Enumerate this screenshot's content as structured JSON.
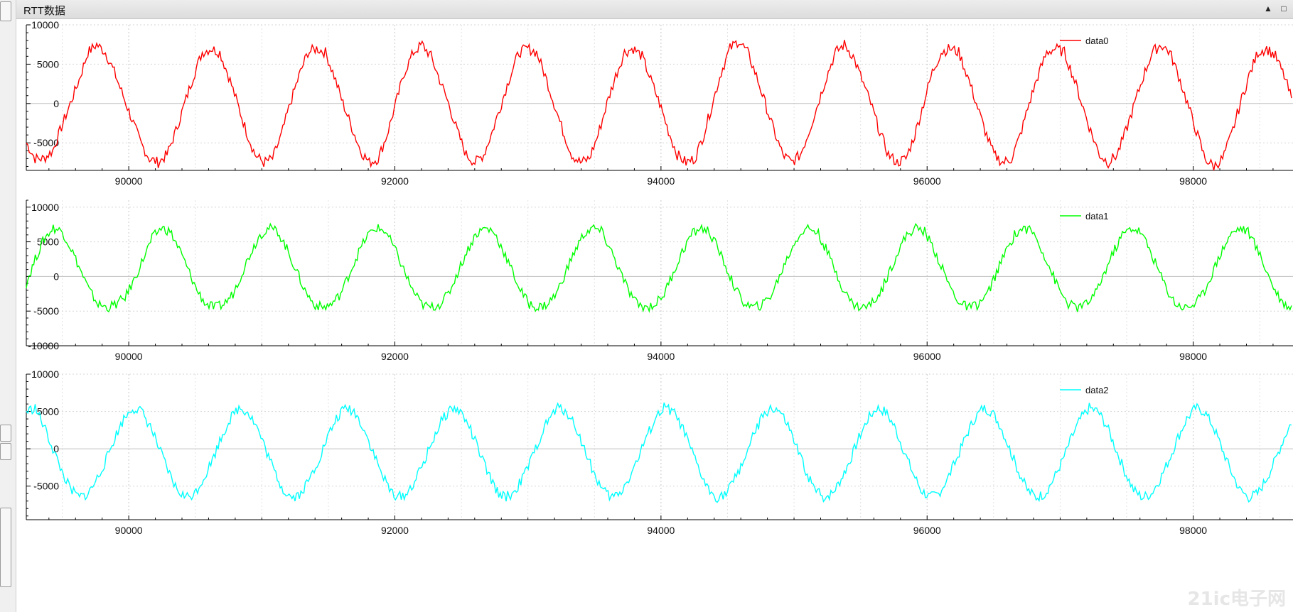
{
  "window": {
    "title": "RTT数据",
    "buttons": [
      "▲",
      "□"
    ]
  },
  "watermark": "21ic电子网",
  "chart_data": [
    {
      "type": "line",
      "x_ticks": [
        90000,
        92000,
        94000,
        96000,
        98000
      ],
      "y_ticks": [
        10000,
        5000,
        0,
        -5000
      ],
      "ylim": [
        -8500,
        10000
      ],
      "xlim": [
        89230,
        98750
      ],
      "grid": true,
      "legend": "top-right",
      "series": [
        {
          "name": "data0",
          "color": "#ff0000",
          "values": [
            -5000,
            -7000,
            -7000,
            -6000,
            -3000,
            0,
            3000,
            6500,
            7500,
            6500,
            4000,
            1000,
            -2000,
            -5000,
            -7000,
            -7500,
            -6500,
            -3500,
            0,
            3500,
            6500,
            7000,
            6500,
            3500,
            0,
            -3500,
            -6500,
            -7500,
            -7000,
            -4000,
            0,
            3500,
            6500,
            7000,
            6500,
            3500,
            0,
            -3000,
            -6000,
            -7500,
            -7000,
            -4000,
            0,
            4000,
            6500,
            7500,
            6000,
            3000,
            0,
            -3500,
            -6500,
            -7500,
            -6500,
            -3500,
            0,
            3500,
            6500,
            7000,
            6500,
            3500,
            0,
            -3500,
            -6500,
            -7500,
            -7000,
            -4000,
            0,
            3500,
            6500,
            7000,
            6000,
            3000,
            0,
            -3500,
            -6500,
            -7500,
            -7000,
            -4000,
            0,
            4000,
            7000,
            8000,
            6500,
            3500,
            0,
            -3500,
            -6500,
            -7500,
            -6500,
            -3500,
            0,
            3500,
            6500,
            7500,
            6000,
            3000,
            0,
            -3500,
            -6500,
            -7500,
            -7000,
            -4000,
            0,
            4000,
            6500,
            7000,
            6500,
            3500,
            0,
            -3500,
            -6500,
            -7500,
            -7000,
            -4000,
            0,
            3500,
            6500,
            7000,
            6500,
            3500,
            0,
            -3500,
            -6500,
            -7500,
            -6500,
            -3500,
            0,
            3500,
            6500,
            7500,
            6500,
            3500,
            0,
            -3500,
            -7000,
            -8000,
            -7000,
            -4000,
            0,
            3500,
            6500,
            7000,
            6000,
            3500,
            0
          ]
        }
      ]
    },
    {
      "type": "line",
      "x_ticks": [
        90000,
        92000,
        94000,
        96000,
        98000
      ],
      "y_ticks": [
        10000,
        5000,
        0,
        -5000,
        -10000
      ],
      "ylim": [
        -10000,
        11000
      ],
      "xlim": [
        89230,
        98750
      ],
      "grid": true,
      "legend": "top-right",
      "series": [
        {
          "name": "data1",
          "color": "#00ff00",
          "values": [
            -1000,
            2500,
            5500,
            7000,
            6500,
            4000,
            1000,
            -2000,
            -4000,
            -4500,
            -4000,
            -3000,
            -500,
            2500,
            5500,
            7000,
            6500,
            4000,
            1000,
            -2000,
            -4000,
            -4500,
            -4000,
            -2500,
            500,
            3500,
            6000,
            7000,
            6500,
            4000,
            1000,
            -2000,
            -4000,
            -4500,
            -4000,
            -2500,
            500,
            3500,
            6000,
            7000,
            6500,
            4000,
            1000,
            -2000,
            -4000,
            -4500,
            -4000,
            -2500,
            500,
            3500,
            6000,
            7000,
            6500,
            4000,
            1000,
            -2000,
            -4000,
            -4500,
            -4000,
            -2500,
            500,
            3500,
            6000,
            7000,
            6500,
            4000,
            1000,
            -2000,
            -4000,
            -4500,
            -4000,
            -2500,
            500,
            3500,
            6000,
            7000,
            6500,
            4000,
            1000,
            -2000,
            -4000,
            -4500,
            -4000,
            -2500,
            500,
            3500,
            6000,
            7000,
            6500,
            4000,
            1000,
            -2000,
            -4000,
            -4500,
            -4000,
            -2500,
            500,
            3500,
            6000,
            7000,
            6500,
            4000,
            1000,
            -2000,
            -4000,
            -4500,
            -4000,
            -2500,
            500,
            3500,
            6000,
            7000,
            6500,
            4000,
            1000,
            -2000,
            -4000,
            -4500,
            -4000,
            -2500,
            500,
            3500,
            6000,
            7000,
            6500,
            4000,
            1000,
            -2000,
            -4000,
            -4500,
            -4000,
            -2500,
            500,
            3500,
            6000,
            7000,
            6500,
            4000,
            1000,
            -2000,
            -4000,
            -4500
          ]
        }
      ]
    },
    {
      "type": "line",
      "x_ticks": [
        90000,
        92000,
        94000,
        96000,
        98000
      ],
      "y_ticks": [
        10000,
        5000,
        0,
        -5000
      ],
      "ylim": [
        -9500,
        10000
      ],
      "xlim": [
        89230,
        98750
      ],
      "grid": true,
      "legend": "top-right",
      "series": [
        {
          "name": "data2",
          "color": "#00ffff",
          "values": [
            5000,
            5500,
            3000,
            0,
            -3000,
            -5500,
            -6500,
            -6000,
            -4000,
            -1500,
            1500,
            4000,
            5500,
            5000,
            3000,
            0,
            -3000,
            -5500,
            -6500,
            -6000,
            -4000,
            -1500,
            1500,
            4000,
            5500,
            5000,
            3000,
            0,
            -3000,
            -5500,
            -6500,
            -6000,
            -4000,
            -1500,
            1500,
            4000,
            5500,
            5000,
            3000,
            0,
            -3000,
            -5500,
            -6500,
            -6000,
            -4000,
            -1500,
            1500,
            4000,
            5500,
            5000,
            3000,
            0,
            -3000,
            -5500,
            -6500,
            -6000,
            -4000,
            -1500,
            1500,
            4000,
            5500,
            5000,
            3000,
            0,
            -3000,
            -5500,
            -6500,
            -6000,
            -4000,
            -1500,
            1500,
            4000,
            5500,
            5000,
            3000,
            0,
            -3000,
            -5500,
            -6500,
            -6000,
            -4000,
            -1500,
            1500,
            4000,
            5500,
            5000,
            3000,
            0,
            -3000,
            -5500,
            -6500,
            -6000,
            -4000,
            -1500,
            1500,
            4000,
            5500,
            5000,
            3000,
            0,
            -3000,
            -5500,
            -6500,
            -6000,
            -4000,
            -1500,
            1500,
            4000,
            5500,
            5000,
            3000,
            0,
            -3000,
            -5500,
            -6500,
            -6000,
            -4000,
            -1500,
            1500,
            4000,
            5500,
            5000,
            3000,
            0,
            -3000,
            -5500,
            -6500,
            -6000,
            -4000,
            -1500,
            1500,
            4000,
            5500,
            5000,
            3000,
            0,
            -3000,
            -5500,
            -6500,
            -6000,
            -4000,
            -1500,
            1500,
            4000
          ]
        }
      ]
    }
  ]
}
